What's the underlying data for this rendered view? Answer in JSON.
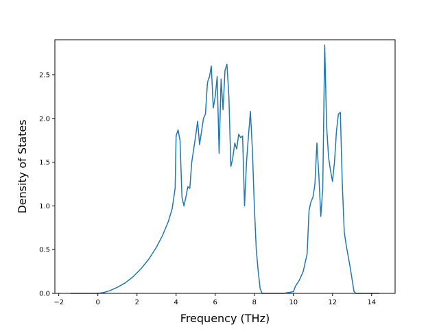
{
  "chart_data": {
    "type": "line",
    "title": "",
    "xlabel": "Frequency (THz)",
    "ylabel": "Density of States",
    "xlim": [
      -2.2,
      15.2
    ],
    "ylim": [
      0.0,
      2.9
    ],
    "xticks": [
      -2,
      0,
      2,
      4,
      6,
      8,
      10,
      12,
      14
    ],
    "xtick_labels": [
      "−2",
      "0",
      "2",
      "4",
      "6",
      "8",
      "10",
      "12",
      "14"
    ],
    "yticks": [
      0.0,
      0.5,
      1.0,
      1.5,
      2.0,
      2.5
    ],
    "ytick_labels": [
      "0.0",
      "0.5",
      "1.0",
      "1.5",
      "2.0",
      "2.5"
    ],
    "grid": false,
    "line_color": "#1f77b4",
    "series": [
      {
        "x": [
          -1.4,
          -1.0,
          -0.5,
          0.0,
          0.3,
          0.6,
          1.0,
          1.4,
          1.8,
          2.2,
          2.6,
          3.0,
          3.3,
          3.6,
          3.8,
          3.95,
          4.0,
          4.1,
          4.2,
          4.3,
          4.4,
          4.5,
          4.6,
          4.7,
          4.8,
          4.9,
          5.0,
          5.1,
          5.2,
          5.3,
          5.4,
          5.5,
          5.6,
          5.65,
          5.7,
          5.8,
          5.9,
          6.0,
          6.1,
          6.2,
          6.3,
          6.4,
          6.5,
          6.6,
          6.7,
          6.8,
          6.9,
          7.0,
          7.1,
          7.2,
          7.3,
          7.4,
          7.5,
          7.6,
          7.7,
          7.8,
          7.9,
          8.0,
          8.1,
          8.2,
          8.3,
          8.4,
          8.5,
          8.6,
          8.7,
          9.0,
          9.5,
          10.0,
          10.1,
          10.3,
          10.5,
          10.7,
          10.8,
          10.9,
          11.0,
          11.1,
          11.2,
          11.3,
          11.4,
          11.5,
          11.6,
          11.7,
          11.8,
          11.9,
          12.0,
          12.1,
          12.2,
          12.3,
          12.4,
          12.5,
          12.6,
          12.7,
          12.9,
          13.1,
          13.2,
          13.5,
          14.0,
          14.4
        ],
        "y": [
          0.0,
          0.0,
          0.0,
          0.0,
          0.01,
          0.03,
          0.07,
          0.12,
          0.19,
          0.28,
          0.39,
          0.53,
          0.66,
          0.82,
          0.97,
          1.2,
          1.8,
          1.87,
          1.75,
          1.1,
          1.0,
          1.1,
          1.22,
          1.2,
          1.5,
          1.65,
          1.8,
          1.97,
          1.7,
          1.85,
          2.0,
          2.05,
          2.4,
          2.45,
          2.47,
          2.6,
          2.12,
          2.25,
          2.48,
          1.6,
          2.45,
          2.1,
          2.55,
          2.62,
          2.25,
          1.45,
          1.55,
          1.72,
          1.65,
          1.82,
          1.78,
          1.8,
          1.0,
          1.5,
          1.8,
          2.08,
          1.65,
          1.0,
          0.5,
          0.25,
          0.05,
          0.0,
          0.0,
          0.0,
          0.0,
          0.0,
          0.0,
          0.02,
          0.08,
          0.15,
          0.25,
          0.45,
          0.95,
          1.05,
          1.1,
          1.25,
          1.72,
          1.35,
          0.88,
          1.2,
          2.84,
          1.9,
          1.55,
          1.4,
          1.28,
          1.5,
          1.85,
          2.05,
          2.07,
          1.25,
          0.7,
          0.55,
          0.3,
          0.02,
          0.0,
          0.0,
          0.0,
          0.0
        ]
      }
    ]
  }
}
